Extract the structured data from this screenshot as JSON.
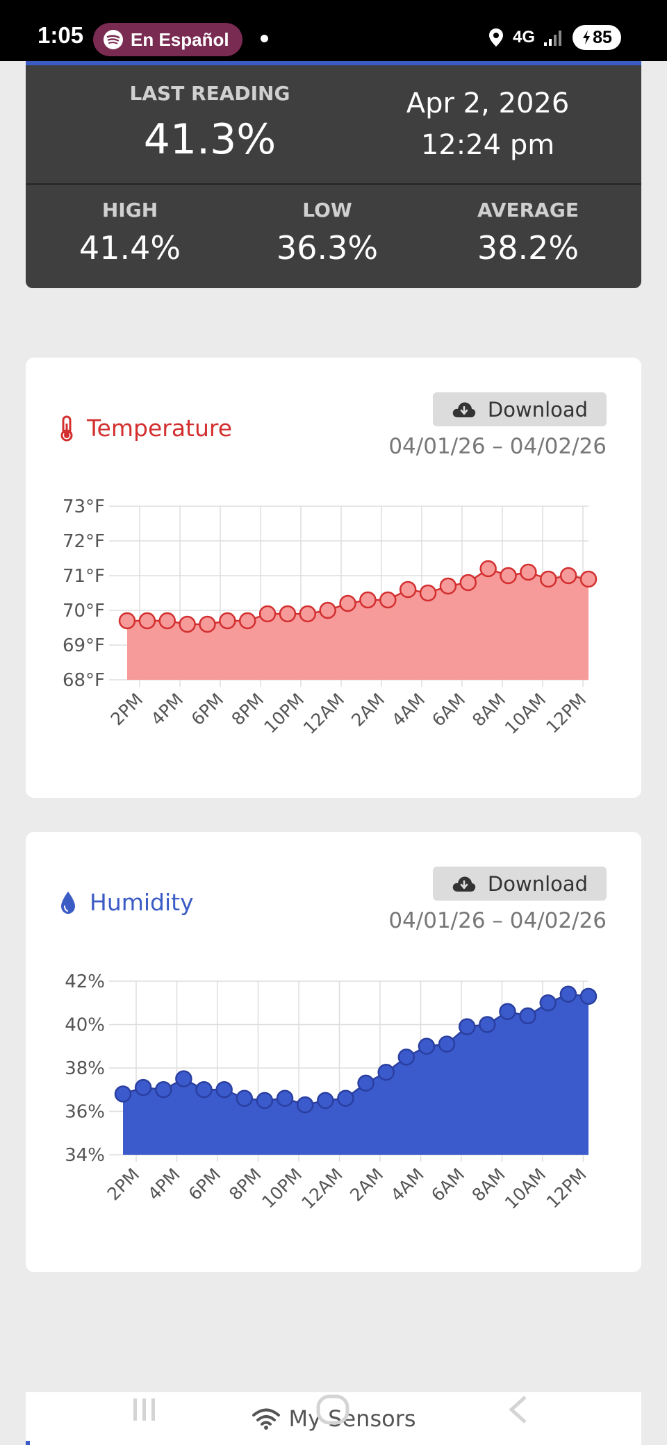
{
  "status_bar": {
    "time": "1:05",
    "media_label": "En Español",
    "network": "4G",
    "battery": "85"
  },
  "reading": {
    "last_reading_label": "LAST READING",
    "last_reading_value": "41.3%",
    "date": "Apr 2, 2026",
    "time": "12:24 pm",
    "high_label": "HIGH",
    "high_value": "41.4%",
    "low_label": "LOW",
    "low_value": "36.3%",
    "average_label": "AVERAGE",
    "average_value": "38.2%"
  },
  "temperature_card": {
    "title": "Temperature",
    "download_label": "Download",
    "date_range": "04/01/26 – 04/02/26",
    "accent_color": "#d32f2f"
  },
  "humidity_card": {
    "title": "Humidity",
    "download_label": "Download",
    "date_range": "04/01/26 – 04/02/26",
    "accent_color": "#3b5bc5"
  },
  "chart_data": [
    {
      "type": "area",
      "x_tick_labels": [
        "2PM",
        "4PM",
        "6PM",
        "8PM",
        "10PM",
        "12AM",
        "2AM",
        "4AM",
        "6AM",
        "8AM",
        "10AM",
        "12PM"
      ],
      "y_tick_labels": [
        "73°F",
        "72°F",
        "71°F",
        "70°F",
        "69°F",
        "68°F"
      ],
      "ylim": [
        68,
        73
      ],
      "values": [
        69.7,
        69.7,
        69.7,
        69.6,
        69.6,
        69.7,
        69.7,
        69.9,
        69.9,
        69.9,
        70.0,
        70.2,
        70.3,
        70.3,
        70.6,
        70.5,
        70.7,
        70.8,
        71.2,
        71.0,
        71.1,
        70.9,
        71.0,
        70.9
      ],
      "fill_color": "#f79a9a",
      "line_color": "#d32f2f",
      "grid": true
    },
    {
      "type": "area",
      "x_tick_labels": [
        "2PM",
        "4PM",
        "6PM",
        "8PM",
        "10PM",
        "12AM",
        "2AM",
        "4AM",
        "6AM",
        "8AM",
        "10AM",
        "12PM"
      ],
      "y_tick_labels": [
        "42%",
        "40%",
        "38%",
        "36%",
        "34%"
      ],
      "ylim": [
        34,
        42
      ],
      "values": [
        36.8,
        37.1,
        37.0,
        37.5,
        37.0,
        37.0,
        36.6,
        36.5,
        36.6,
        36.3,
        36.5,
        36.6,
        37.3,
        37.8,
        38.5,
        39.0,
        39.1,
        39.9,
        40.0,
        40.6,
        40.4,
        41.0,
        41.4,
        41.3
      ],
      "fill_color": "#3b5bcd",
      "line_color": "#2a3fa0",
      "grid": true
    }
  ],
  "bottom_nav": {
    "label": "My Sensors"
  }
}
